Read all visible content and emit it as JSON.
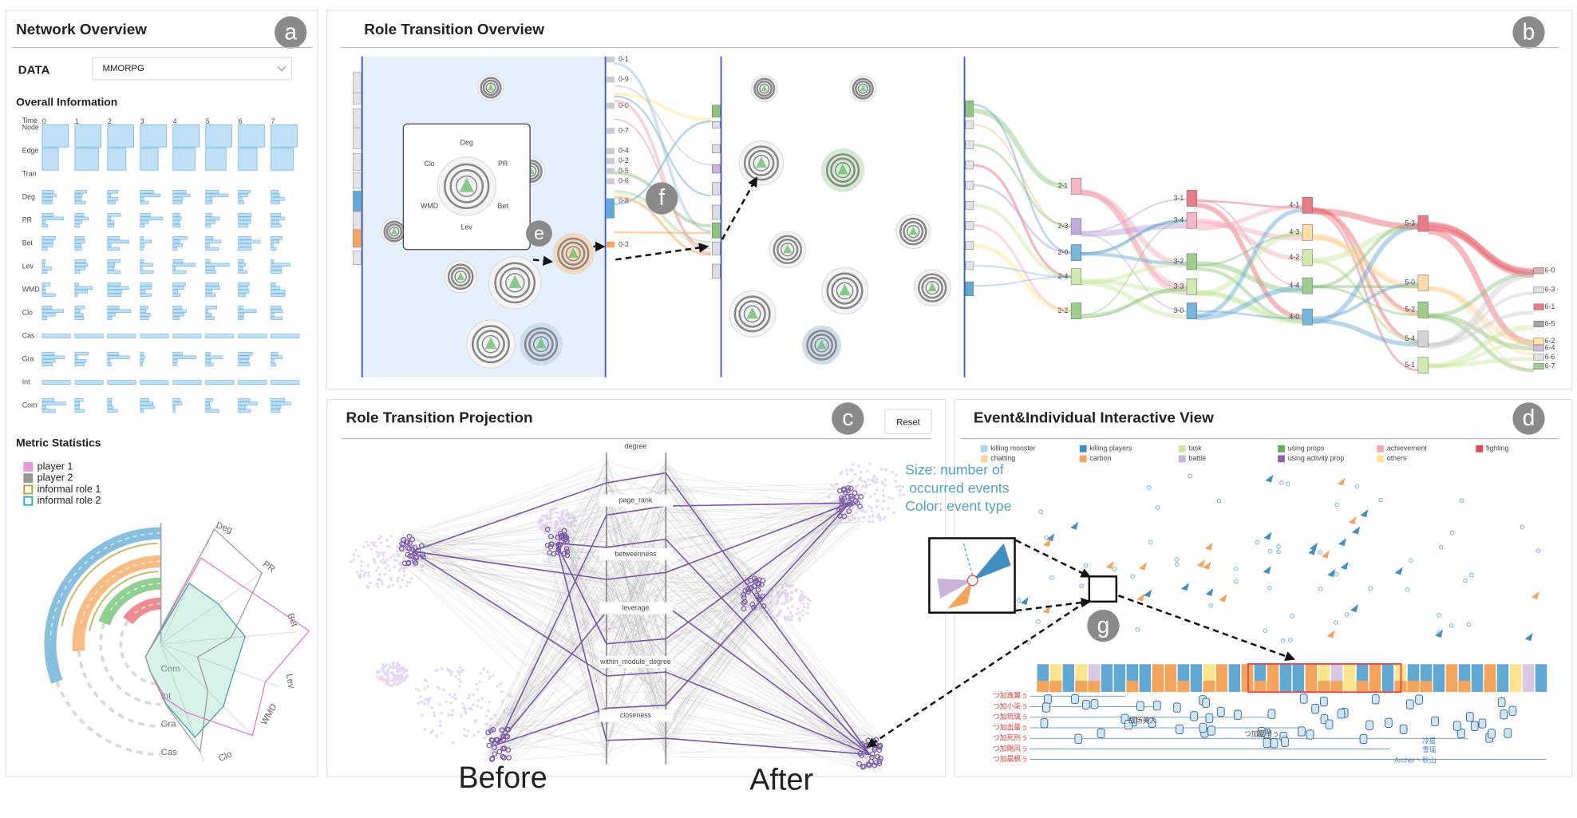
{
  "panels": {
    "a": {
      "badge": "a",
      "title": "Network Overview",
      "data_label": "DATA",
      "dataset": "MMORPG",
      "overall_title": "Overall Information",
      "time_label": "Time",
      "time_steps": [
        "0",
        "1",
        "2",
        "3",
        "4",
        "5",
        "6",
        "7"
      ],
      "rows": [
        "Node",
        "Edge",
        "Tran",
        "Deg",
        "PR",
        "Bet",
        "Lev",
        "WMD",
        "Clo",
        "Cas",
        "Gra",
        "Int",
        "Com"
      ],
      "metric_title": "Metric Statistics",
      "legend": [
        "player 1",
        "player 2",
        "informal role 1",
        "informal role 2"
      ],
      "radar_axes": [
        "Deg",
        "PR",
        "Bet",
        "Lev",
        "WMD",
        "Clo",
        "Cas",
        "Gra",
        "Int",
        "Com"
      ]
    },
    "b": {
      "badge": "b",
      "title": "Role Transition Overview",
      "popup_axes": [
        "Deg",
        "Clo",
        "PR",
        "WMD",
        "Bet",
        "Lev"
      ],
      "markers": [
        "e",
        "f"
      ],
      "left_labels": [
        "0-1",
        "0-9",
        "0-0",
        "0-7",
        "0-4",
        "0-2",
        "0-5",
        "0-6",
        "0-8",
        "0-3"
      ],
      "sankey_columns": [
        [
          "2-1",
          "2-3",
          "2-0",
          "2-4",
          "2-2"
        ],
        [
          "3-1",
          "3-4",
          "3-2",
          "3-3",
          "3-0"
        ],
        [
          "4-1",
          "4-3",
          "4-2",
          "4-4",
          "4-0"
        ],
        [
          "5-3",
          "5-0",
          "5-2",
          "5-4",
          "5-1"
        ],
        [
          "6-0",
          "6-3",
          "6-1",
          "6-5",
          "6-2",
          "6-4",
          "6-6",
          "6-7"
        ]
      ]
    },
    "c": {
      "badge": "c",
      "title": "Role Transition Projection",
      "reset": "Reset",
      "axes": [
        "degree",
        "page_rank",
        "betweenness",
        "leverage",
        "within_module_degree",
        "closeness"
      ],
      "before": "Before",
      "after": "After"
    },
    "d": {
      "badge": "d",
      "title": "Event&Individual Interactive View",
      "legend": [
        "killing monster",
        "chatting",
        "killing players",
        "carbon",
        "task",
        "battle",
        "using props",
        "using activity prop",
        "achievement",
        "others",
        "fighting"
      ],
      "annotation_lines": [
        "Size: number of",
        "occurred events",
        "Color: event type"
      ],
      "marker": "g",
      "names_left": [
        "つ加逸翼ぅ",
        "つ加小柒ぅ",
        "つ加琉璃ぅ",
        "つ加血量ぅ",
        "つ加死刑ぅ",
        "つ加飓风ぅ",
        "つ加晨枫ぅ"
      ],
      "names_mid": [
        "战场美人",
        "つ加夏爷ぅ"
      ],
      "names_right": [
        "冷星",
        "雪瑶",
        "Archer丶秋山"
      ]
    }
  }
}
